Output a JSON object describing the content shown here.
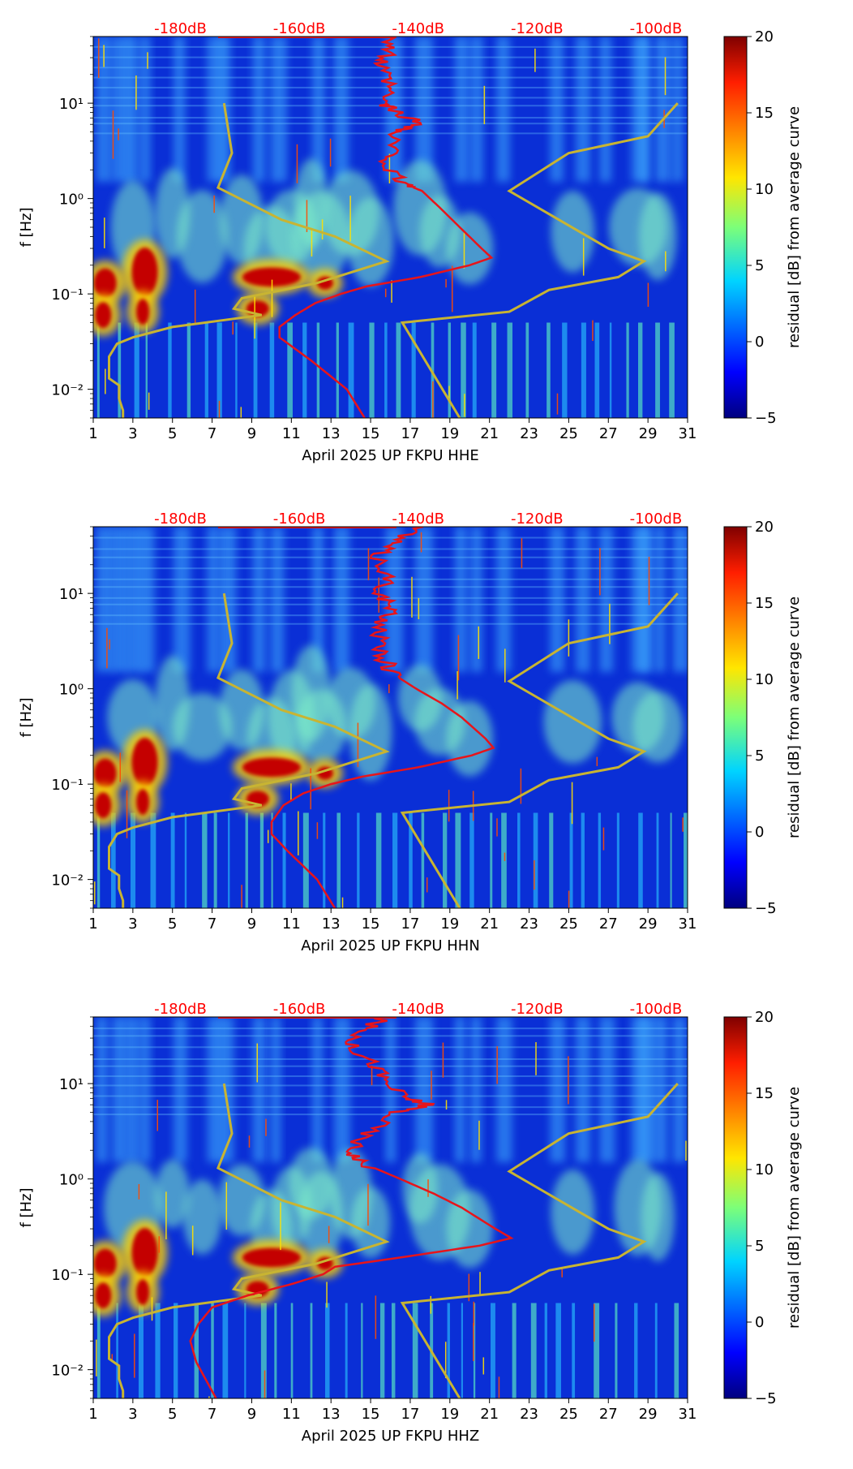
{
  "chart_data": [
    {
      "type": "heatmap",
      "station_label": "April 2025 UP FKPU  HHE",
      "xlabel": "April 2025 UP FKPU  HHE",
      "ylabel": "f [Hz]",
      "x_ticks": [
        "1",
        "3",
        "5",
        "7",
        "9",
        "11",
        "13",
        "15",
        "17",
        "19",
        "21",
        "23",
        "25",
        "27",
        "29",
        "31"
      ],
      "xlim": [
        1,
        31
      ],
      "y_ticks": [
        "10⁻²",
        "10⁻¹",
        "10⁰",
        "10¹"
      ],
      "ylim_hz": [
        0.005,
        50
      ],
      "top_scale_labels": [
        "-180dB",
        "-160dB",
        "-140dB",
        "-120dB",
        "-100dB"
      ],
      "colorbar": {
        "label": "residual [dB] from average curve",
        "ticks": [
          "20",
          "15",
          "10",
          "5",
          "0",
          "−5"
        ],
        "range": [
          -5,
          20
        ]
      },
      "red_curve_name": "average PSD curve (red)",
      "yellow_curve_name": "reference model curves (yellow)"
    },
    {
      "type": "heatmap",
      "station_label": "April 2025 UP FKPU  HHN",
      "xlabel": "April 2025 UP FKPU  HHN",
      "ylabel": "f [Hz]",
      "x_ticks": [
        "1",
        "3",
        "5",
        "7",
        "9",
        "11",
        "13",
        "15",
        "17",
        "19",
        "21",
        "23",
        "25",
        "27",
        "29",
        "31"
      ],
      "xlim": [
        1,
        31
      ],
      "y_ticks": [
        "10⁻²",
        "10⁻¹",
        "10⁰",
        "10¹"
      ],
      "ylim_hz": [
        0.005,
        50
      ],
      "top_scale_labels": [
        "-180dB",
        "-160dB",
        "-140dB",
        "-120dB",
        "-100dB"
      ],
      "colorbar": {
        "label": "residual [dB] from average curve",
        "ticks": [
          "20",
          "15",
          "10",
          "5",
          "0",
          "−5"
        ],
        "range": [
          -5,
          20
        ]
      },
      "red_curve_name": "average PSD curve (red)",
      "yellow_curve_name": "reference model curves (yellow)"
    },
    {
      "type": "heatmap",
      "station_label": "April 2025 UP FKPU  HHZ",
      "xlabel": "April 2025 UP FKPU  HHZ",
      "ylabel": "f [Hz]",
      "x_ticks": [
        "1",
        "3",
        "5",
        "7",
        "9",
        "11",
        "13",
        "15",
        "17",
        "19",
        "21",
        "23",
        "25",
        "27",
        "29",
        "31"
      ],
      "xlim": [
        1,
        31
      ],
      "y_ticks": [
        "10⁻²",
        "10⁻¹",
        "10⁰",
        "10¹"
      ],
      "ylim_hz": [
        0.005,
        50
      ],
      "top_scale_labels": [
        "-180dB",
        "-160dB",
        "-140dB",
        "-120dB",
        "-100dB"
      ],
      "colorbar": {
        "label": "residual [dB] from average curve",
        "ticks": [
          "20",
          "15",
          "10",
          "5",
          "0",
          "−5"
        ],
        "range": [
          -5,
          20
        ]
      },
      "red_curve_name": "average PSD curve (red)",
      "yellow_curve_name": "reference model curves (yellow)"
    }
  ],
  "colors": {
    "background_field": "#0a2fd6",
    "red_curve": "#e8141a",
    "yellow_curve": "#c8b432",
    "top_scale_text": "#ff0000"
  }
}
